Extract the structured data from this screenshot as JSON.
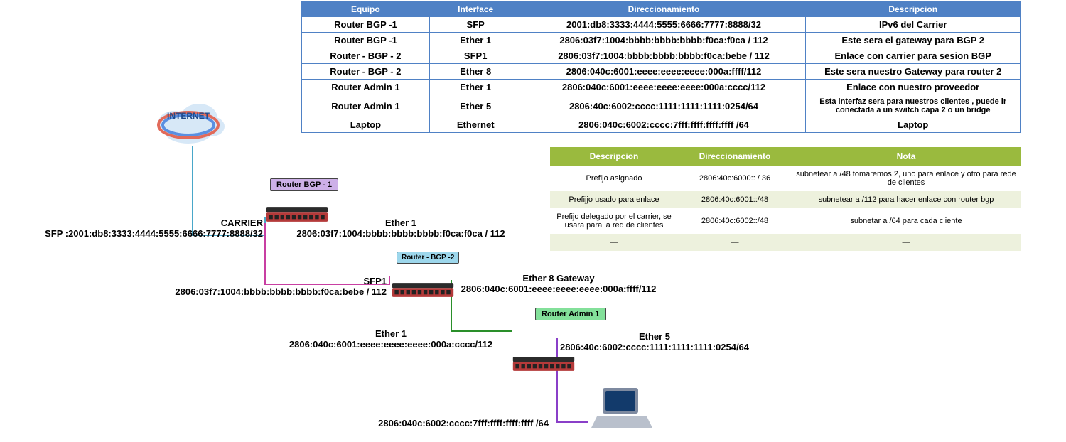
{
  "top_table": {
    "header_bg": "#4f81c5",
    "header_fg": "#ffffff",
    "border_color": "#4f81c5",
    "columns": [
      "Equipo",
      "Interface",
      "Direccionamiento",
      "Descripcion"
    ],
    "rows": [
      {
        "equipo": "Router BGP -1",
        "iface": "SFP",
        "addr": "2001:db8:3333:4444:5555:6666:7777:8888/32",
        "desc": "IPv6 del Carrier",
        "small": false
      },
      {
        "equipo": "Router BGP -1",
        "iface": "Ether 1",
        "addr": "2806:03f7:1004:bbbb:bbbb:bbbb:f0ca:f0ca / 112",
        "desc": "Este sera el gateway para BGP 2",
        "small": false
      },
      {
        "equipo": "Router - BGP - 2",
        "iface": "SFP1",
        "addr": "2806:03f7:1004:bbbb:bbbb:bbbb:f0ca:bebe / 112",
        "desc": "Enlace con carrier para sesion BGP",
        "small": false
      },
      {
        "equipo": "Router - BGP - 2",
        "iface": "Ether 8",
        "addr": "2806:040c:6001:eeee:eeee:eeee:000a:ffff/112",
        "desc": "Este sera nuestro Gateway para router 2",
        "small": false
      },
      {
        "equipo": "Router Admin 1",
        "iface": "Ether 1",
        "addr": "2806:040c:6001:eeee:eeee:eeee:000a:cccc/112",
        "desc": "Enlace con nuestro proveedor",
        "small": false
      },
      {
        "equipo": "Router Admin 1",
        "iface": "Ether 5",
        "addr": "2806:40c:6002:cccc:1111:1111:1111:0254/64",
        "desc": "Esta interfaz sera para nuestros clientes , puede ir conectada a un switch capa 2 o un bridge",
        "small": true
      },
      {
        "equipo": "Laptop",
        "iface": "Ethernet",
        "addr": "2806:040c:6002:cccc:7fff:ffff:ffff:ffff /64",
        "desc": "Laptop",
        "small": false
      }
    ]
  },
  "green_table": {
    "header_bg": "#9aba3e",
    "header_fg": "#ffffff",
    "row_alt_bg": "#edf1dd",
    "row_bg": "#ffffff",
    "border_color": "#ffffff",
    "columns": [
      "Descripcion",
      "Direccionamiento",
      "Nota"
    ],
    "rows": [
      {
        "desc": "Prefijo asignado",
        "addr": "2806:40c:6000:: / 36",
        "nota": "subnetear a /48  tomaremos 2, uno para enlace y otro para rede de clientes"
      },
      {
        "desc": "Prefijjo usado para enlace",
        "addr": "2806:40c:6001::/48",
        "nota": "subnetear a /112 para hacer enlace con router bgp"
      },
      {
        "desc": "Prefijo delegado por el carrier, se usara para la red de clientes",
        "addr": "2806:40c:6002::/48",
        "nota": "subnetar a /64 para cada cliente"
      },
      {
        "desc": "—",
        "addr": "—",
        "nota": "—"
      }
    ]
  },
  "diagram": {
    "internet_label": "INTERNET",
    "cloud_colors": {
      "fill": "#d7e8f7",
      "accent_red": "#e16a5a",
      "accent_blue": "#5a8fe1",
      "accent_dark": "#123a6b"
    },
    "routers": {
      "bgp1": {
        "box_label": "Router BGP - 1",
        "box_bg": "#cdb0e8",
        "box_fg": "#000000"
      },
      "bgp2": {
        "box_label": "Router - BGP -2",
        "box_bg": "#9dd7ec",
        "box_fg": "#000000"
      },
      "adm1": {
        "box_label": "Router Admin 1",
        "box_bg": "#83e09a",
        "box_fg": "#000000"
      }
    },
    "router_art": {
      "body_color": "#b43a3a",
      "top_color": "#2b2b2b",
      "port_color": "#222222"
    },
    "laptop_art": {
      "screen": "#123a6b",
      "body": "#7e8aa0",
      "base": "#b9c0cc"
    },
    "labels": {
      "carrier_title": "CARRIER",
      "carrier_addr": "SFP :2001:db8:3333:4444:5555:6666:7777:8888/32",
      "bgp1_ether1_title": "Ether 1",
      "bgp1_ether1_addr": "2806:03f7:1004:bbbb:bbbb:bbbb:f0ca:f0ca / 112",
      "bgp2_sfp1_title": "SFP1",
      "bgp2_sfp1_addr": "2806:03f7:1004:bbbb:bbbb:bbbb:f0ca:bebe / 112",
      "bgp2_ether8_title": "Ether 8 Gateway",
      "bgp2_ether8_addr": "2806:040c:6001:eeee:eeee:eeee:000a:ffff/112",
      "adm1_ether1_title": "Ether 1",
      "adm1_ether1_addr": "2806:040c:6001:eeee:eeee:eeee:000a:cccc/112",
      "adm1_ether5_title": "Ether 5",
      "adm1_ether5_addr": "2806:40c:6002:cccc:1111:1111:1111:0254/64",
      "laptop_addr": "2806:040c:6002:cccc:7fff:ffff:ffff:ffff /64"
    },
    "wire_colors": {
      "internet_bgp1": "#49a7c9",
      "bgp1_bgp2": "#c83fa2",
      "bgp2_adm1": "#2a8f2a",
      "adm1_laptop": "#8a3fc8"
    }
  }
}
